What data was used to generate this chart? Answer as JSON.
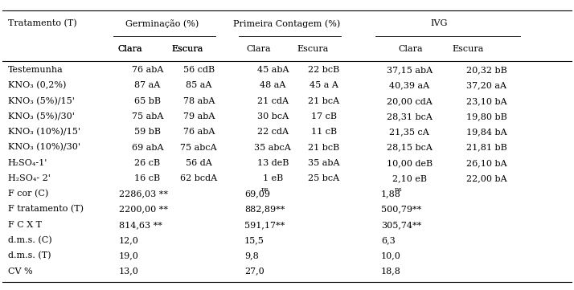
{
  "col_headers_level1": [
    "Tratamento (T)",
    "Germinação (%)",
    "Primeira Contagem (%)",
    "IVG"
  ],
  "col_headers_level2": [
    "Clara",
    "Escura",
    "Clara",
    "Escura",
    "Clara",
    "Escura"
  ],
  "rows": [
    [
      "Testemunha",
      "76 abA",
      "56 cdB",
      "45 abA",
      "22 bcB",
      "37,15 abA",
      "20,32 bB"
    ],
    [
      "KNO₃ (0,2%)",
      "87 aA",
      "85 aA",
      "48 aA",
      "45 a A",
      "40,39 aA",
      "37,20 aA"
    ],
    [
      "KNO₃ (5%)/15'",
      "65 bB",
      "78 abA",
      "21 cdA",
      "21 bcA",
      "20,00 cdA",
      "23,10 bA"
    ],
    [
      "KNO₃ (5%)/30'",
      "75 abA",
      "79 abA",
      "30 bcA",
      "17 cB",
      "28,31 bcA",
      "19,80 bB"
    ],
    [
      "KNO₃ (10%)/15'",
      "59 bB",
      "76 abA",
      "22 cdA",
      "11 cB",
      "21,35 cA",
      "19,84 bA"
    ],
    [
      "KNO₃ (10%)/30'",
      "69 abA",
      "75 abcA",
      "35 abcA",
      "21 bcB",
      "28,15 bcA",
      "21,81 bB"
    ],
    [
      "H₂SO₄-1'",
      "26 cB",
      "56 dA",
      "13 deB",
      "35 abA",
      "10,00 deB",
      "26,10 bA"
    ],
    [
      "H₂SO₄- 2'",
      "16 cB",
      "62 bcdA",
      "1 eB",
      "25 bcA",
      "2,10 eB",
      "22,00 bA"
    ],
    [
      "F cor (C)",
      "2286,03 **",
      "",
      "69,09ns",
      "",
      "1,88ns",
      ""
    ],
    [
      "F tratamento (T)",
      "2200,00 **",
      "",
      "882,89**",
      "",
      "500,79**",
      ""
    ],
    [
      "F C X T",
      "814,63 **",
      "",
      "591,17**",
      "",
      "305,74**",
      ""
    ],
    [
      "d.m.s. (C)",
      "12,0",
      "",
      "15,5",
      "",
      "6,3",
      ""
    ],
    [
      "d.m.s. (T)",
      "19,0",
      "",
      "9,8",
      "",
      "10,0",
      ""
    ],
    [
      "CV %",
      "13,0",
      "",
      "27,0",
      "",
      "18,8",
      ""
    ]
  ],
  "ns_rows": [
    8
  ],
  "font_size": 8.0,
  "bg_color": "#ffffff"
}
